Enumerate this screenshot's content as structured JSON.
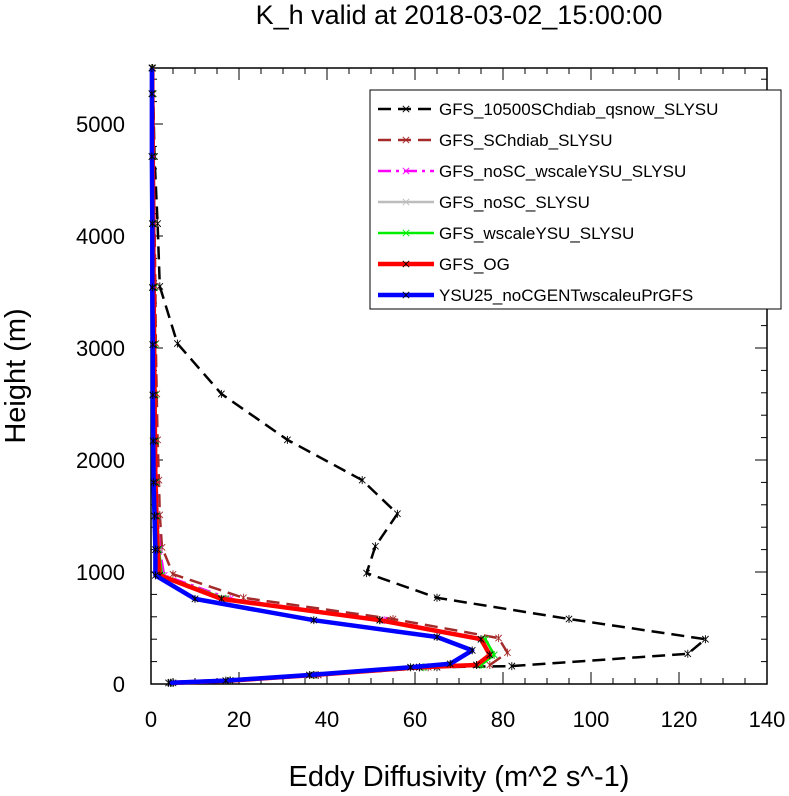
{
  "chart_data": {
    "type": "line",
    "title": "K_h valid at 2018-03-02_15:00:00",
    "xlabel": "Eddy Diffusivity (m^2 s^-1)",
    "ylabel": "Height (m)",
    "xlim": [
      0,
      140
    ],
    "ylim": [
      0,
      5500
    ],
    "xticks": [
      0,
      20,
      40,
      60,
      80,
      100,
      120,
      140
    ],
    "yticks": [
      0,
      1000,
      2000,
      3000,
      4000,
      5000
    ],
    "grid": false,
    "legend_position": "top-right",
    "series": [
      {
        "name": "GFS_10500SChdiab_qsnow_SLYSU",
        "color": "#000000",
        "dash": "dashed",
        "points": [
          [
            5,
            10
          ],
          [
            18,
            30
          ],
          [
            38,
            80
          ],
          [
            65,
            150
          ],
          [
            82,
            160
          ],
          [
            122,
            270
          ],
          [
            126,
            400
          ],
          [
            95,
            580
          ],
          [
            65,
            770
          ],
          [
            49,
            990
          ],
          [
            51,
            1230
          ],
          [
            56,
            1520
          ],
          [
            48,
            1820
          ],
          [
            31,
            2180
          ],
          [
            16,
            2590
          ],
          [
            6,
            3040
          ],
          [
            2,
            3550
          ],
          [
            1.5,
            4110
          ],
          [
            0.8,
            4710
          ],
          [
            0.5,
            5270
          ],
          [
            0.3,
            5500
          ]
        ]
      },
      {
        "name": "GFS_SChdiab_SLYSU",
        "color": "#a52a2a",
        "dash": "dashed",
        "points": [
          [
            4.5,
            10
          ],
          [
            18,
            30
          ],
          [
            38,
            80
          ],
          [
            63,
            150
          ],
          [
            77,
            170
          ],
          [
            81,
            280
          ],
          [
            79,
            410
          ],
          [
            55,
            580
          ],
          [
            21,
            770
          ],
          [
            5,
            980
          ],
          [
            2.5,
            1220
          ],
          [
            2,
            1510
          ],
          [
            1.8,
            1820
          ],
          [
            1.5,
            2180
          ],
          [
            1.3,
            2590
          ],
          [
            1.1,
            3040
          ],
          [
            1,
            3550
          ],
          [
            0.8,
            4110
          ],
          [
            0.6,
            4710
          ],
          [
            0.5,
            5270
          ],
          [
            0.4,
            5500
          ]
        ]
      },
      {
        "name": "GFS_noSC_wscaleYSU_SLYSU",
        "color": "#ff00ff",
        "dash": "dashdot",
        "points": [
          [
            4.5,
            10
          ],
          [
            18,
            30
          ],
          [
            37,
            80
          ],
          [
            61,
            150
          ],
          [
            74,
            170
          ],
          [
            78,
            260
          ],
          [
            76,
            400
          ],
          [
            53,
            570
          ],
          [
            18,
            760
          ],
          [
            3,
            970
          ],
          [
            2,
            1200
          ],
          [
            1.5,
            1500
          ],
          [
            1.3,
            1800
          ],
          [
            1.1,
            2170
          ],
          [
            0.9,
            2580
          ],
          [
            0.8,
            3030
          ],
          [
            0.7,
            3540
          ],
          [
            0.6,
            4110
          ],
          [
            0.5,
            4710
          ],
          [
            0.4,
            5270
          ],
          [
            0.3,
            5500
          ]
        ]
      },
      {
        "name": "GFS_noSC_SLYSU",
        "color": "#bdbdbd",
        "dash": "solid",
        "points": [
          [
            4.5,
            10
          ],
          [
            18,
            30
          ],
          [
            37,
            80
          ],
          [
            61,
            150
          ],
          [
            74,
            170
          ],
          [
            77,
            260
          ],
          [
            75,
            400
          ],
          [
            52,
            570
          ],
          [
            17,
            760
          ],
          [
            2.5,
            970
          ],
          [
            1.8,
            1200
          ],
          [
            1.4,
            1500
          ],
          [
            1.2,
            1800
          ],
          [
            1,
            2170
          ],
          [
            0.9,
            2580
          ],
          [
            0.8,
            3030
          ],
          [
            0.7,
            3540
          ],
          [
            0.6,
            4110
          ],
          [
            0.5,
            4710
          ],
          [
            0.4,
            5270
          ],
          [
            0.3,
            5500
          ]
        ]
      },
      {
        "name": "GFS_wscaleYSU_SLYSU",
        "color": "#00ee00",
        "dash": "solid",
        "points": [
          [
            4.5,
            10
          ],
          [
            18,
            30
          ],
          [
            37,
            80
          ],
          [
            62,
            150
          ],
          [
            75,
            170
          ],
          [
            78,
            260
          ],
          [
            76,
            400
          ],
          [
            52,
            570
          ],
          [
            17,
            760
          ],
          [
            2.5,
            970
          ],
          [
            1.8,
            1200
          ],
          [
            1.4,
            1500
          ],
          [
            1.2,
            1800
          ],
          [
            1.1,
            2170
          ],
          [
            1,
            2580
          ],
          [
            0.9,
            3030
          ],
          [
            0.8,
            3540
          ],
          [
            0.6,
            4110
          ],
          [
            0.5,
            4710
          ],
          [
            0.4,
            5270
          ],
          [
            0.3,
            5500
          ]
        ]
      },
      {
        "name": "GFS_OG",
        "color": "#ff0000",
        "dash": "solid",
        "points": [
          [
            4.5,
            10
          ],
          [
            18,
            30
          ],
          [
            37,
            80
          ],
          [
            61,
            150
          ],
          [
            74,
            170
          ],
          [
            77,
            260
          ],
          [
            75,
            400
          ],
          [
            52,
            570
          ],
          [
            16,
            760
          ],
          [
            2,
            970
          ],
          [
            1.5,
            1200
          ],
          [
            1.2,
            1500
          ],
          [
            1,
            1800
          ],
          [
            0.9,
            2170
          ],
          [
            0.8,
            2580
          ],
          [
            0.7,
            3030
          ],
          [
            0.6,
            3540
          ],
          [
            0.5,
            4110
          ],
          [
            0.4,
            4710
          ],
          [
            0.3,
            5270
          ],
          [
            0.3,
            5500
          ]
        ]
      },
      {
        "name": "YSU25_noCGENTwscaleuPrGFS",
        "color": "#0000ff",
        "dash": "solid",
        "points": [
          [
            4,
            10
          ],
          [
            17,
            30
          ],
          [
            36,
            80
          ],
          [
            59,
            150
          ],
          [
            68,
            180
          ],
          [
            73,
            300
          ],
          [
            65,
            420
          ],
          [
            37,
            570
          ],
          [
            10,
            760
          ],
          [
            1,
            970
          ],
          [
            1,
            1200
          ],
          [
            0.8,
            1500
          ],
          [
            0.6,
            1800
          ],
          [
            0.5,
            2170
          ],
          [
            0.4,
            2580
          ],
          [
            0.4,
            3030
          ],
          [
            0.3,
            3540
          ],
          [
            0.3,
            4110
          ],
          [
            0.2,
            4710
          ],
          [
            0.2,
            5270
          ],
          [
            0.2,
            5500
          ]
        ]
      }
    ]
  }
}
